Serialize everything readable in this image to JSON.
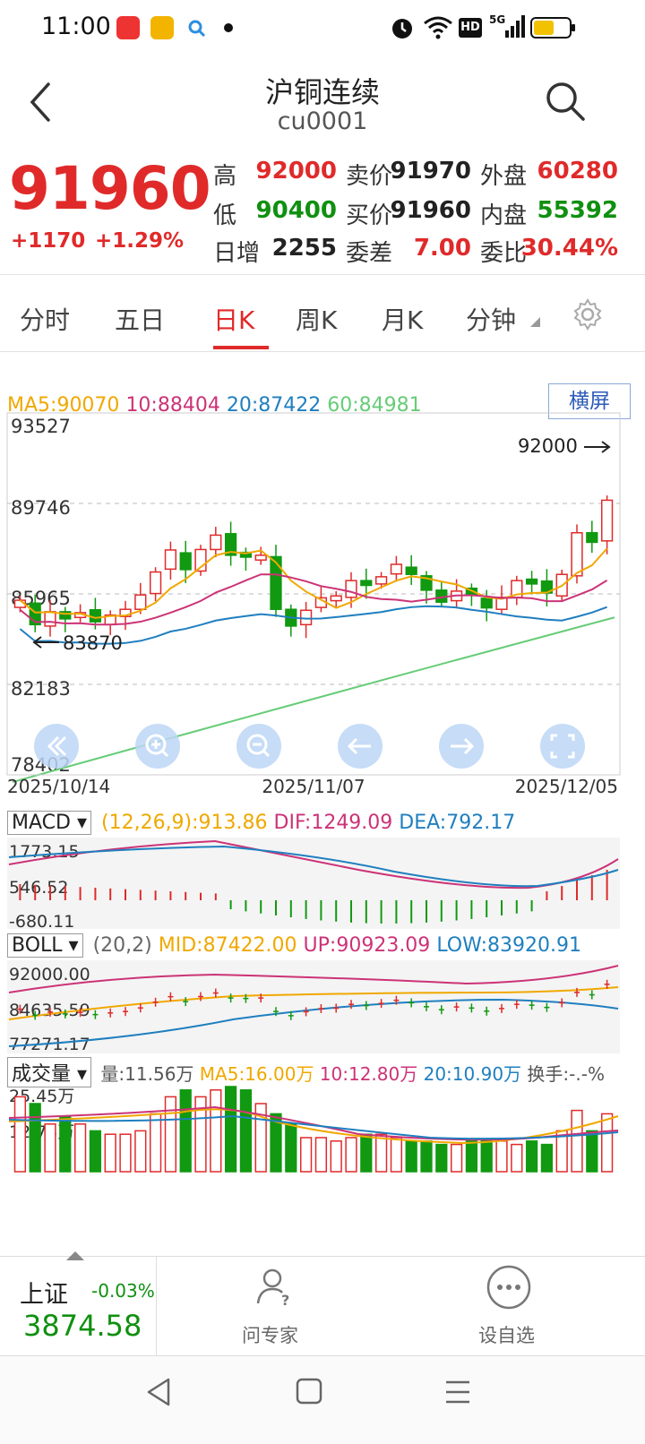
{
  "status_bar": {
    "time": "11:00"
  },
  "header": {
    "title": "沪铜连续",
    "code": "cu0001"
  },
  "quote": {
    "price": "91960",
    "change": "+1170",
    "change_pct": "+1.29%",
    "rows": [
      [
        {
          "label": "高",
          "value": "92000",
          "color": "red"
        },
        {
          "label": "卖价",
          "value": "91970",
          "color": "dark"
        },
        {
          "label": "外盘",
          "value": "60280",
          "color": "red"
        }
      ],
      [
        {
          "label": "低",
          "value": "90400",
          "color": "green"
        },
        {
          "label": "买价",
          "value": "91960",
          "color": "dark"
        },
        {
          "label": "内盘",
          "value": "55392",
          "color": "green"
        }
      ],
      [
        {
          "label": "日增",
          "value": "2255",
          "color": "dark"
        },
        {
          "label": "委差",
          "value": "7.00",
          "color": "red"
        },
        {
          "label": "委比",
          "value": "30.44%",
          "color": "red"
        }
      ]
    ]
  },
  "tabs": [
    {
      "label": "分时",
      "active": false
    },
    {
      "label": "五日",
      "active": false
    },
    {
      "label": "日K",
      "active": true
    },
    {
      "label": "周K",
      "active": false
    },
    {
      "label": "月K",
      "active": false
    },
    {
      "label": "分钟",
      "active": false
    }
  ],
  "ma_legend": {
    "ma5": "MA5:90070",
    "ma10": "10:88404",
    "ma20": "20:87422",
    "ma60": "60:84981"
  },
  "landscape_label": "横屏",
  "kline": {
    "y_ticks": [
      "93527",
      "89746",
      "85965",
      "82183",
      "78402"
    ],
    "dates": [
      "2025/10/14",
      "2025/11/07",
      "2025/12/05"
    ],
    "high_label": "92000",
    "low_label": "83870"
  },
  "macd": {
    "name": "MACD",
    "params": "(12,26,9):913.86",
    "dif": "DIF:1249.09",
    "dea": "DEA:792.17",
    "y_ticks": [
      "1773.15",
      "546.52",
      "-680.11"
    ]
  },
  "boll": {
    "name": "BOLL",
    "params": "(20,2)",
    "mid": "MID:87422.00",
    "up": "UP:90923.09",
    "low": "LOW:83920.91",
    "y_ticks": [
      "92000.00",
      "84635.59",
      "77271.17"
    ]
  },
  "volume": {
    "name": "成交量",
    "vol": "量:11.56万",
    "ma5": "MA5:16.00万",
    "ma10": "10:12.80万",
    "ma20": "20:10.90万",
    "turnover": "换手:-.-%",
    "y_ticks": [
      "25.45万",
      "12.73万"
    ]
  },
  "colors": {
    "up": "#e02a2a",
    "down": "#119911",
    "ma5": "#f0a800",
    "ma10": "#cc3377",
    "ma20": "#1f7fbf",
    "ma60": "#66cc77"
  },
  "bottom": {
    "index_name": "上证",
    "index_change": "-0.03%",
    "index_value": "3874.58",
    "expert_label": "问专家",
    "watch_label": "设自选"
  }
}
